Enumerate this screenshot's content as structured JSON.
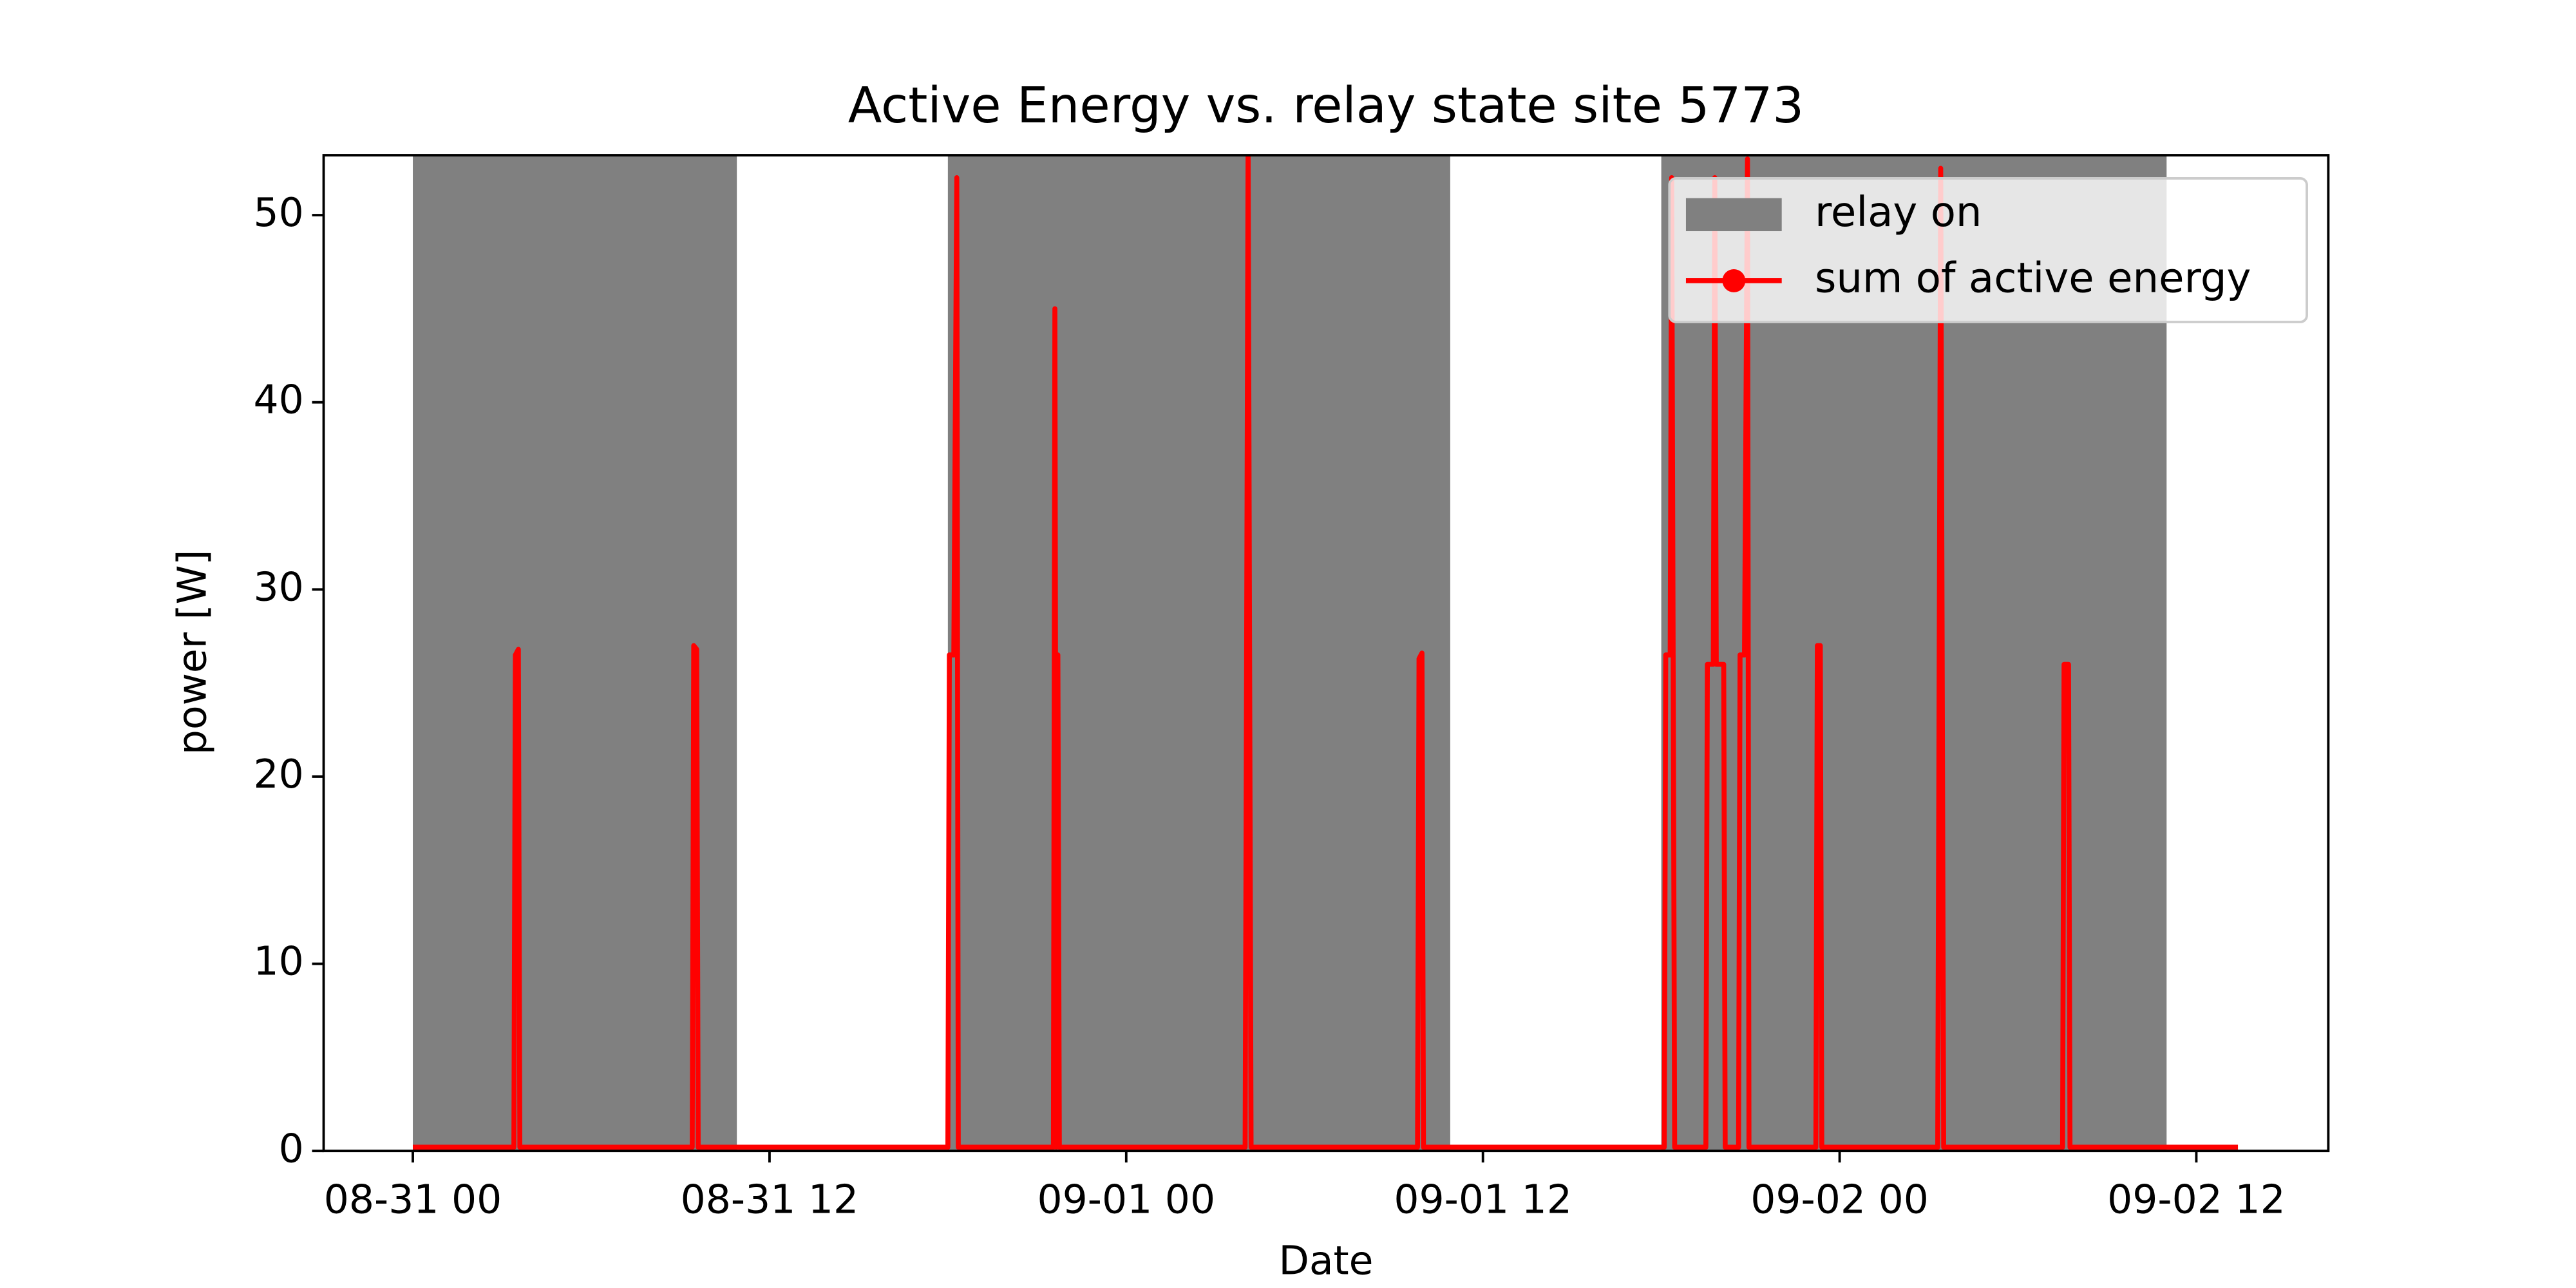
{
  "chart_data": {
    "type": "line",
    "title": "Active Energy vs. relay state site 5773",
    "x_label": "Date",
    "y_label": "power [W]",
    "xlim": [
      -3.0,
      64.44
    ],
    "ylim": [
      0,
      53.2
    ],
    "xticks": [
      {
        "value": 0,
        "label": "08-31 00"
      },
      {
        "value": 12,
        "label": "08-31 12"
      },
      {
        "value": 24,
        "label": "09-01 00"
      },
      {
        "value": 36,
        "label": "09-01 12"
      },
      {
        "value": 48,
        "label": "09-02 00"
      },
      {
        "value": 60,
        "label": "09-02 12"
      }
    ],
    "yticks": [
      0,
      10,
      20,
      30,
      40,
      50
    ],
    "legend": "upper right",
    "x": [
      0,
      3.4,
      3.45,
      3.55,
      3.6,
      9.4,
      9.45,
      9.55,
      9.6,
      18.0,
      18.05,
      18.2,
      18.3,
      18.35,
      21.55,
      21.6,
      21.65,
      21.7,
      21.75,
      28.0,
      28.05,
      28.1,
      28.15,
      28.2,
      33.8,
      33.85,
      33.95,
      34.0,
      42.1,
      42.15,
      42.3,
      42.35,
      42.45,
      43.5,
      43.55,
      43.75,
      43.8,
      43.85,
      44.1,
      44.15,
      44.6,
      44.65,
      44.8,
      44.9,
      44.95,
      47.2,
      47.25,
      47.35,
      47.4,
      51.3,
      51.35,
      51.4,
      51.45,
      51.5,
      55.5,
      55.55,
      55.7,
      55.75,
      61.4
    ],
    "series": [
      {
        "name": "relay on",
        "color": "#808080",
        "spans": [
          [
            0,
            10.9
          ],
          [
            18.0,
            34.9
          ],
          [
            42.0,
            59.0
          ]
        ]
      },
      {
        "name": "sum of active energy",
        "color": "#ff0000",
        "values": [
          0.2,
          0.2,
          26.5,
          26.8,
          0.2,
          0.2,
          27,
          26.8,
          0.2,
          0.2,
          26.5,
          26.5,
          52,
          0.2,
          0.2,
          45,
          0.2,
          26.5,
          0.2,
          0.2,
          26.5,
          54,
          26.5,
          0.2,
          0.2,
          26.3,
          26.6,
          0.2,
          0.2,
          26.5,
          26.5,
          52,
          0.2,
          0.2,
          26,
          26,
          52,
          26,
          26,
          0.2,
          0.2,
          26.5,
          26.5,
          53,
          0.2,
          0.2,
          27,
          27,
          0.2,
          0.2,
          26.5,
          52.5,
          26.5,
          0.2,
          0.2,
          26,
          26,
          0.2,
          0.2
        ]
      }
    ]
  }
}
